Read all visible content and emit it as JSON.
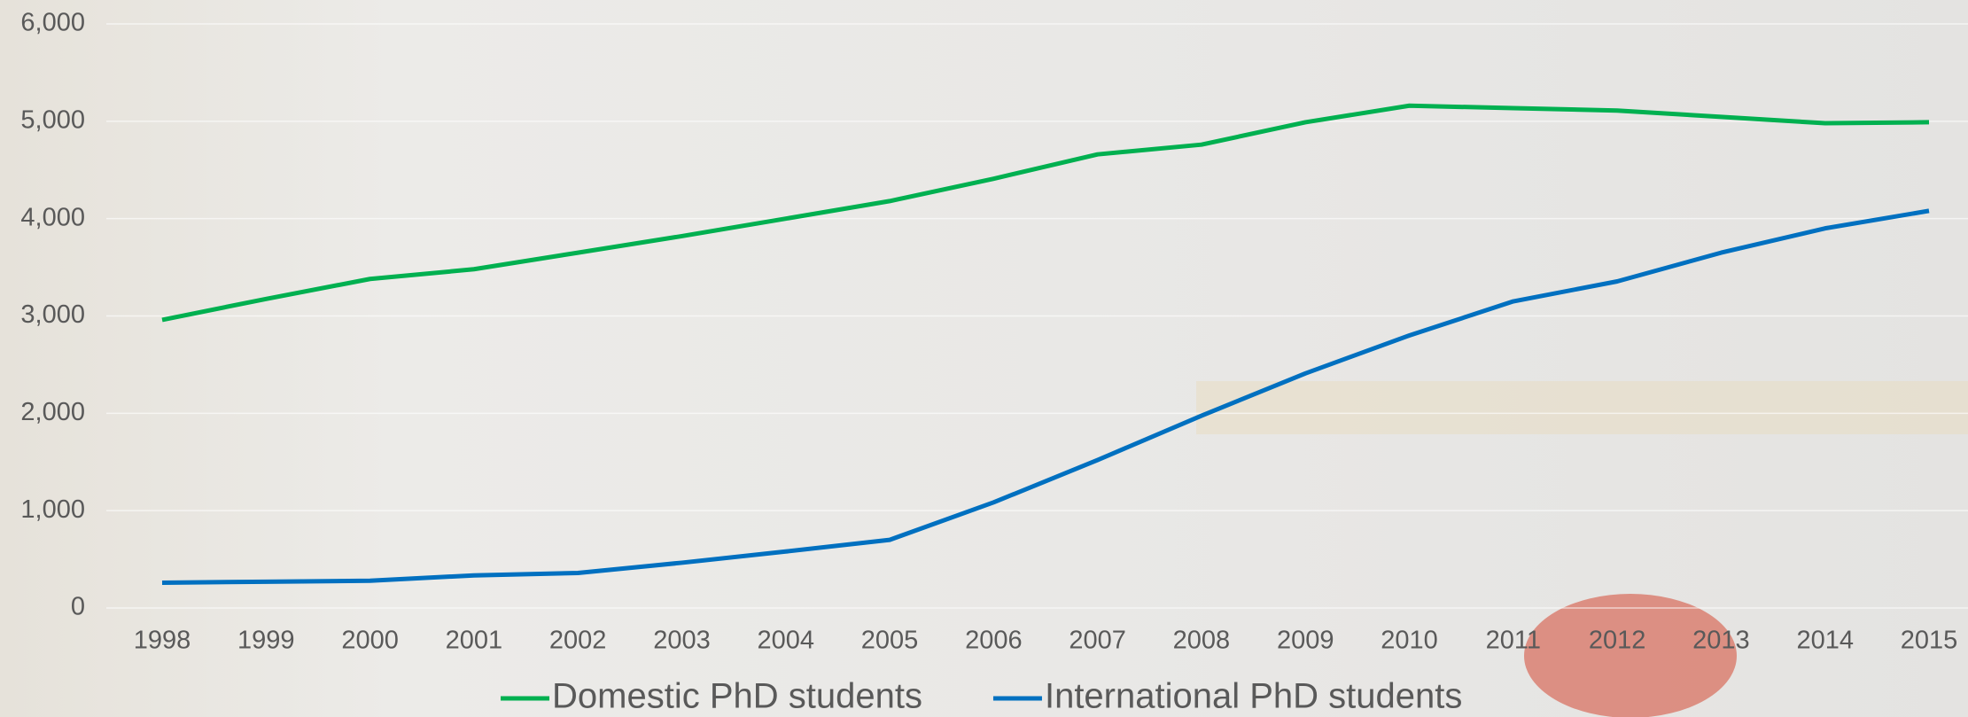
{
  "chart_data": {
    "type": "line",
    "categories": [
      "1998",
      "1999",
      "2000",
      "2001",
      "2002",
      "2003",
      "2004",
      "2005",
      "2006",
      "2007",
      "2008",
      "2009",
      "2010",
      "2011",
      "2012",
      "2013",
      "2014",
      "2015"
    ],
    "series": [
      {
        "name": "Domestic PhD students",
        "color": "#00b050",
        "values": [
          2960,
          3175,
          3380,
          3480,
          3650,
          3820,
          4000,
          4180,
          4410,
          4660,
          4760,
          4990,
          5160,
          5135,
          5110,
          5045,
          4980,
          4990
        ]
      },
      {
        "name": "International PhD students",
        "color": "#0070c0",
        "values": [
          260,
          270,
          280,
          335,
          360,
          465,
          580,
          700,
          1085,
          1520,
          1975,
          2410,
          2800,
          3150,
          3355,
          3650,
          3900,
          4080
        ]
      }
    ],
    "ylim": [
      0,
      6000
    ],
    "yticks": [
      0,
      {
        "value": 1000,
        "label": "1,000"
      },
      {
        "value": 2000,
        "label": "2,000"
      },
      {
        "value": 3000,
        "label": "3,000"
      },
      {
        "value": 4000,
        "label": "4,000"
      },
      {
        "value": 5000,
        "label": "5,000"
      },
      {
        "value": 6000,
        "label": "6,000"
      }
    ],
    "grid": true,
    "legend": "bottom"
  }
}
